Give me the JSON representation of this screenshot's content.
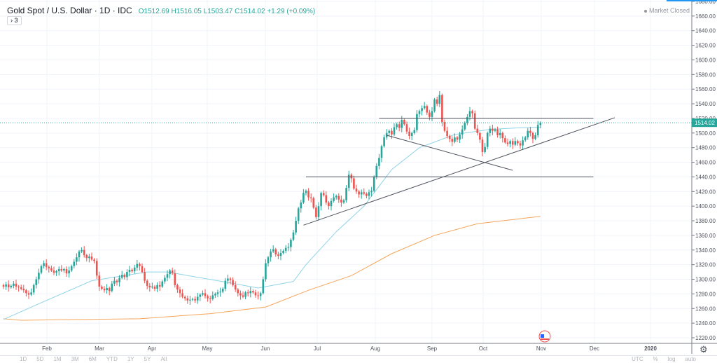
{
  "header": {
    "symbol_title": "Gold Spot / U.S. Dollar · 1D · IDC",
    "open": "O1512.69",
    "high": "H1516.05",
    "low": "L1503.47",
    "close": "C1514.02",
    "change": "+1.29 (+0.09%)",
    "collapse_label": "› 3",
    "market_status": "Market Closed"
  },
  "bottom_bar": {
    "ranges": [
      "1D",
      "5D",
      "1M",
      "3M",
      "6M",
      "YTD",
      "1Y",
      "5Y",
      "All"
    ],
    "right": [
      "UTC",
      "%",
      "log",
      "auto"
    ]
  },
  "colors": {
    "up": "#26a69a",
    "down": "#ef5350",
    "sma50": "#8fd3e6",
    "sma200": "#f5a55a",
    "last_price": "#26a69a",
    "drawing": "#50535e"
  },
  "chart_data": {
    "type": "candlestick",
    "title": "Gold Spot / U.S. Dollar · 1D · IDC",
    "ylim": [
      1220,
      1680
    ],
    "y_ticks": [
      "1220.00",
      "1240.00",
      "1260.00",
      "1280.00",
      "1300.00",
      "1320.00",
      "1340.00",
      "1360.00",
      "1380.00",
      "1400.00",
      "1420.00",
      "1440.00",
      "1460.00",
      "1480.00",
      "1500.00",
      "1520.00",
      "1540.00",
      "1560.00",
      "1580.00",
      "1600.00",
      "1620.00",
      "1640.00",
      "1660.00",
      "1680.00"
    ],
    "x_ticks": [
      "Feb",
      "Mar",
      "Apr",
      "May",
      "Jun",
      "Jul",
      "Aug",
      "Sep",
      "Oct",
      "Nov",
      "Dec",
      "2020"
    ],
    "last_price": "1514.02",
    "first_open": 1292,
    "closes": [
      1290,
      1293,
      1289,
      1291,
      1294,
      1290,
      1289,
      1287,
      1285,
      1281,
      1279,
      1282,
      1292,
      1300,
      1309,
      1318,
      1322,
      1317,
      1315,
      1312,
      1309,
      1311,
      1314,
      1312,
      1314,
      1308,
      1312,
      1318,
      1324,
      1330,
      1338,
      1340,
      1333,
      1329,
      1331,
      1327,
      1325,
      1305,
      1290,
      1287,
      1285,
      1288,
      1284,
      1294,
      1298,
      1296,
      1302,
      1306,
      1303,
      1310,
      1313,
      1311,
      1316,
      1321,
      1318,
      1310,
      1298,
      1291,
      1289,
      1290,
      1287,
      1292,
      1290,
      1297,
      1302,
      1307,
      1312,
      1308,
      1292,
      1286,
      1281,
      1276,
      1274,
      1271,
      1272,
      1273,
      1271,
      1276,
      1279,
      1281,
      1277,
      1274,
      1273,
      1278,
      1280,
      1282,
      1283,
      1287,
      1298,
      1301,
      1299,
      1292,
      1286,
      1281,
      1278,
      1276,
      1282,
      1281,
      1284,
      1282,
      1278,
      1277,
      1281,
      1300,
      1322,
      1330,
      1338,
      1341,
      1334,
      1332,
      1336,
      1339,
      1343,
      1344,
      1354,
      1364,
      1380,
      1397,
      1405,
      1418,
      1421,
      1412,
      1411,
      1398,
      1385,
      1400,
      1418,
      1415,
      1405,
      1400,
      1407,
      1412,
      1414,
      1409,
      1405,
      1408,
      1425,
      1443,
      1438,
      1424,
      1420,
      1416,
      1419,
      1417,
      1414,
      1419,
      1421,
      1440,
      1455,
      1466,
      1482,
      1494,
      1500,
      1503,
      1498,
      1508,
      1512,
      1507,
      1518,
      1512,
      1502,
      1496,
      1500,
      1504,
      1526,
      1530,
      1534,
      1537,
      1528,
      1522,
      1530,
      1546,
      1540,
      1552,
      1515,
      1503,
      1496,
      1492,
      1488,
      1494,
      1491,
      1498,
      1505,
      1514,
      1522,
      1530,
      1527,
      1506,
      1500,
      1491,
      1474,
      1481,
      1500,
      1506,
      1503,
      1505,
      1497,
      1500,
      1493,
      1487,
      1485,
      1489,
      1484,
      1489,
      1486,
      1483,
      1490,
      1494,
      1503,
      1500,
      1492,
      1497,
      1511,
      1514
    ],
    "sma50": [
      [
        0,
        1245
      ],
      [
        13,
        1265
      ],
      [
        35,
        1298
      ],
      [
        57,
        1310
      ],
      [
        65,
        1310
      ],
      [
        90,
        1295
      ],
      [
        101,
        1288
      ],
      [
        115,
        1297
      ],
      [
        120,
        1320
      ],
      [
        132,
        1365
      ],
      [
        143,
        1400
      ],
      [
        154,
        1450
      ],
      [
        165,
        1480
      ],
      [
        179,
        1498
      ],
      [
        193,
        1505
      ],
      [
        204,
        1507
      ],
      [
        213,
        1508
      ]
    ],
    "sma200": [
      [
        0,
        1246
      ],
      [
        7,
        1244
      ],
      [
        54,
        1246
      ],
      [
        82,
        1253
      ],
      [
        104,
        1262
      ],
      [
        121,
        1285
      ],
      [
        138,
        1305
      ],
      [
        154,
        1335
      ],
      [
        171,
        1360
      ],
      [
        188,
        1376
      ],
      [
        213,
        1386
      ]
    ],
    "drawings": [
      {
        "name": "resistance-1520",
        "from": [
          149,
          1520
        ],
        "to": [
          234,
          1520
        ]
      },
      {
        "name": "support-1440",
        "from": [
          120,
          1440
        ],
        "to": [
          234,
          1440
        ]
      },
      {
        "name": "ascending-trendline",
        "from": [
          119,
          1374
        ],
        "to": [
          242.5,
          1521
        ]
      },
      {
        "name": "descending-trendline",
        "from": [
          152,
          1497
        ],
        "to": [
          202,
          1449
        ]
      }
    ]
  }
}
